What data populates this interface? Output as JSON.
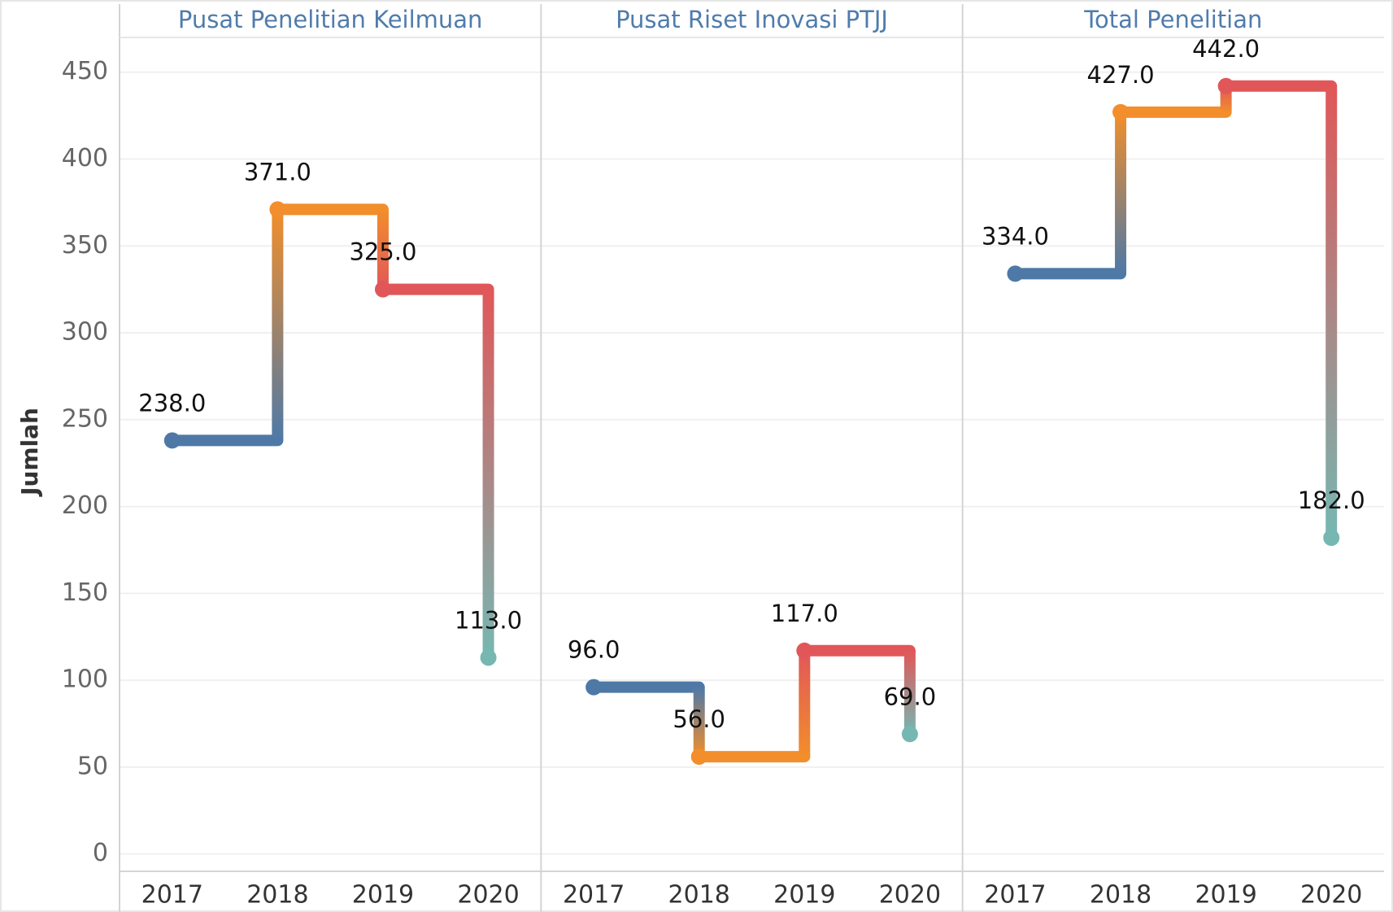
{
  "chart_data": {
    "type": "step",
    "ylabel": "Jumlah",
    "ylim": [
      -10,
      470
    ],
    "yticks": [
      0,
      50,
      100,
      150,
      200,
      250,
      300,
      350,
      400,
      450
    ],
    "grid": true,
    "categories": [
      "2017",
      "2018",
      "2019",
      "2020"
    ],
    "colors": [
      "#4e79a7",
      "#f28e2b",
      "#e15759",
      "#76b7b2"
    ],
    "panels": [
      {
        "title": "Pusat Penelitian Keilmuan",
        "values": [
          238,
          371,
          325,
          113
        ],
        "value_labels": [
          "238.0",
          "371.0",
          "325.0",
          "113.0"
        ]
      },
      {
        "title": "Pusat Riset Inovasi PTJJ",
        "values": [
          96,
          56,
          117,
          69
        ],
        "value_labels": [
          "96.0",
          "56.0",
          "117.0",
          "69.0"
        ]
      },
      {
        "title": "Total Penelitian",
        "values": [
          334,
          427,
          442,
          182
        ],
        "value_labels": [
          "334.0",
          "427.0",
          "442.0",
          "182.0"
        ]
      }
    ]
  }
}
